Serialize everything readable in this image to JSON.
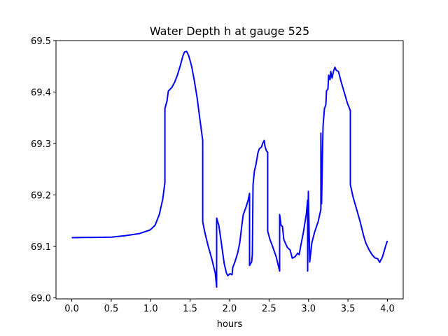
{
  "chart_data": {
    "type": "line",
    "title": "Water Depth h at gauge 525",
    "xlabel": "hours",
    "ylabel": "",
    "xlim": [
      -0.2,
      4.2
    ],
    "ylim": [
      68.998,
      69.5
    ],
    "xticks": [
      0.0,
      0.5,
      1.0,
      1.5,
      2.0,
      2.5,
      3.0,
      3.5,
      4.0
    ],
    "xtick_labels": [
      "0.0",
      "0.5",
      "1.0",
      "1.5",
      "2.0",
      "2.5",
      "3.0",
      "3.5",
      "4.0"
    ],
    "yticks": [
      69.0,
      69.1,
      69.2,
      69.3,
      69.4,
      69.5
    ],
    "ytick_labels": [
      "69.0",
      "69.1",
      "69.2",
      "69.3",
      "69.4",
      "69.5"
    ],
    "grid": false,
    "series": [
      {
        "name": "h",
        "color": "#0000ff",
        "x": [
          0,
          0.506,
          0.683,
          0.86,
          0.993,
          1.055,
          1.109,
          1.153,
          1.18,
          1.18,
          1.206,
          1.224,
          1.268,
          1.304,
          1.339,
          1.375,
          1.41,
          1.428,
          1.455,
          1.481,
          1.517,
          1.552,
          1.588,
          1.623,
          1.659,
          1.659,
          1.685,
          1.729,
          1.774,
          1.818,
          1.836,
          1.836,
          1.863,
          1.889,
          1.916,
          1.933,
          1.96,
          1.978,
          2.004,
          2.031,
          2.04,
          2.067,
          2.102,
          2.129,
          2.155,
          2.173,
          2.208,
          2.235,
          2.253,
          2.253,
          2.279,
          2.288,
          2.297,
          2.315,
          2.333,
          2.359,
          2.377,
          2.404,
          2.421,
          2.439,
          2.448,
          2.466,
          2.483,
          2.483,
          2.51,
          2.545,
          2.59,
          2.634,
          2.634,
          2.652,
          2.67,
          2.687,
          2.705,
          2.732,
          2.767,
          2.794,
          2.829,
          2.865,
          2.882,
          2.9,
          2.936,
          2.971,
          2.989,
          2.989,
          2.998,
          3.016,
          3.042,
          3.078,
          3.122,
          3.157,
          3.157,
          3.166,
          3.184,
          3.202,
          3.22,
          3.228,
          3.246,
          3.255,
          3.273,
          3.282,
          3.299,
          3.317,
          3.335,
          3.353,
          3.379,
          3.415,
          3.459,
          3.494,
          3.53,
          3.53,
          3.565,
          3.61,
          3.654,
          3.698,
          3.725,
          3.769,
          3.805,
          3.84,
          3.876,
          3.902,
          3.938,
          3.982,
          4.0
        ],
        "y": [
          69.117,
          69.118,
          69.121,
          69.125,
          69.132,
          69.141,
          69.162,
          69.192,
          69.224,
          69.368,
          69.382,
          69.402,
          69.409,
          69.419,
          69.433,
          69.451,
          69.471,
          69.478,
          69.479,
          69.471,
          69.451,
          69.423,
          69.389,
          69.348,
          69.306,
          69.148,
          69.128,
          69.1,
          69.076,
          69.048,
          69.021,
          69.155,
          69.141,
          69.114,
          69.084,
          69.066,
          69.048,
          69.043,
          69.047,
          69.045,
          69.059,
          69.07,
          69.087,
          69.107,
          69.141,
          69.162,
          69.176,
          69.19,
          69.203,
          69.063,
          69.07,
          69.084,
          69.22,
          69.247,
          69.258,
          69.282,
          69.29,
          69.293,
          69.301,
          69.306,
          69.295,
          69.286,
          69.283,
          69.13,
          69.114,
          69.1,
          69.08,
          69.052,
          69.162,
          69.141,
          69.139,
          69.114,
          69.107,
          69.098,
          69.093,
          69.077,
          69.08,
          69.087,
          69.084,
          69.1,
          69.128,
          69.162,
          69.19,
          69.052,
          69.207,
          69.07,
          69.107,
          69.128,
          69.148,
          69.172,
          69.32,
          69.183,
          69.334,
          69.368,
          69.375,
          69.402,
          69.406,
          69.433,
          69.424,
          69.44,
          69.427,
          69.441,
          69.448,
          69.442,
          69.44,
          69.419,
          69.396,
          69.378,
          69.364,
          69.22,
          69.196,
          69.172,
          69.148,
          69.121,
          69.107,
          69.093,
          69.084,
          69.078,
          69.076,
          69.069,
          69.08,
          69.103,
          69.111
        ]
      }
    ]
  }
}
